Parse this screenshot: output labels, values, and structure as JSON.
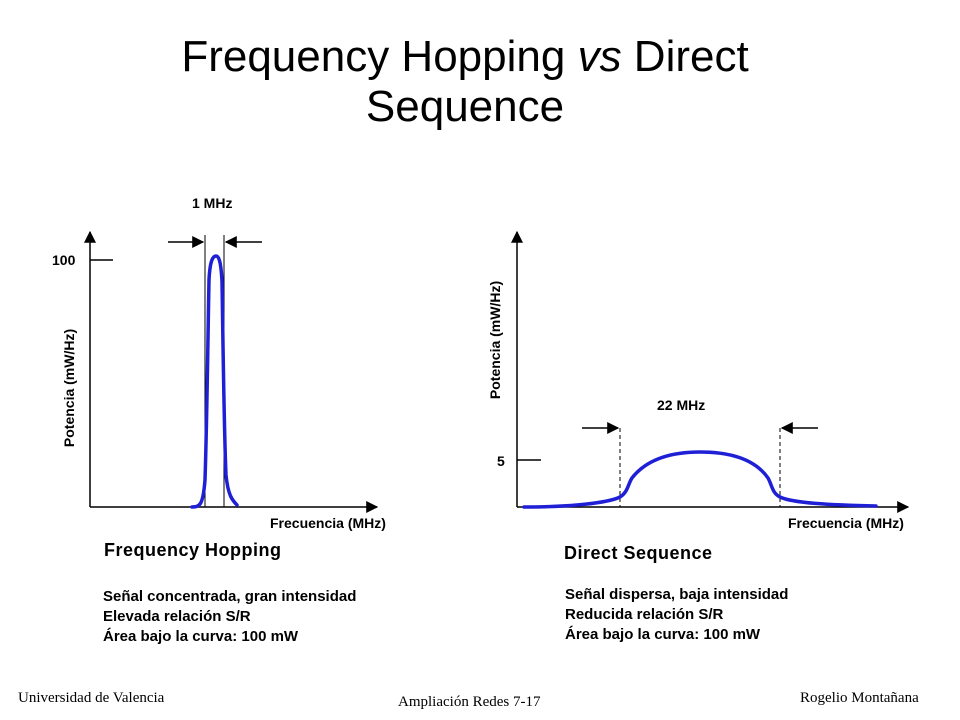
{
  "slide": {
    "title_line1_a": "Frequency Hopping ",
    "title_line1_em": "vs",
    "title_line1_b": " Direct",
    "title_line2": "Sequence"
  },
  "left_panel": {
    "bandwidth_label": "1 MHz",
    "y_tick_label": "100",
    "y_axis_label": "Potencia (mW/Hz)",
    "x_axis_label": "Frecuencia (MHz)",
    "subtitle": "Frequency Hopping",
    "notes": [
      "Señal concentrada, gran intensidad",
      "Elevada relación S/R",
      "Área bajo la curva: 100 mW"
    ],
    "curve_color": "#1f1fd6"
  },
  "right_panel": {
    "bandwidth_label": "22 MHz",
    "y_tick_label": "5",
    "y_axis_label": "Potencia (mW/Hz)",
    "x_axis_label": "Frecuencia (MHz)",
    "subtitle": "Direct Sequence",
    "notes": [
      "Señal dispersa, baja intensidad",
      "Reducida relación S/R",
      "Área bajo la curva: 100 mW"
    ],
    "curve_color": "#1f1fd6"
  },
  "footer": {
    "left": "Universidad de Valencia",
    "center": "Ampliación Redes 7-17",
    "right": "Rogelio Montañana"
  }
}
